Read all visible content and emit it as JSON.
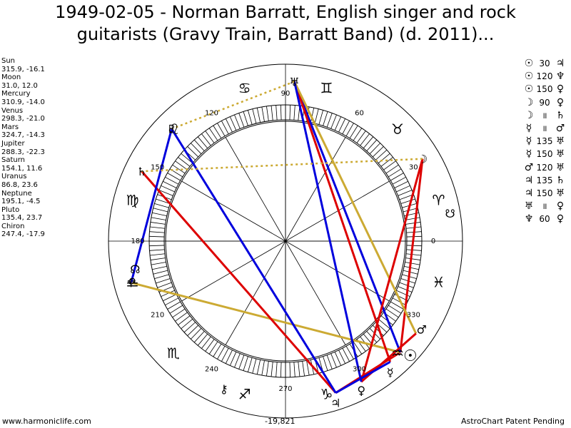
{
  "title": {
    "line1": "1949-02-05 - Norman Barratt, English singer and rock",
    "line2": "guitarists (Gravy Train, Barratt Band) (d. 2011)..."
  },
  "planets": [
    {
      "name": "Sun",
      "coords": "315.9, -16.1",
      "lon": 315.9,
      "symbol": "☉",
      "color": "#000000"
    },
    {
      "name": "Moon",
      "coords": "31.0, 12.0",
      "lon": 31.0,
      "symbol": "☽",
      "color": "#000000"
    },
    {
      "name": "Mercury",
      "coords": "310.9, -14.0",
      "lon": 310.9,
      "symbol": "☿",
      "color": "#000000"
    },
    {
      "name": "Venus",
      "coords": "298.3, -21.0",
      "lon": 298.3,
      "symbol": "♀",
      "color": "#000000"
    },
    {
      "name": "Mars",
      "coords": "324.7, -14.3",
      "lon": 324.7,
      "symbol": "♂",
      "color": "#000000"
    },
    {
      "name": "Jupiter",
      "coords": "288.3, -22.3",
      "lon": 288.3,
      "symbol": "♃",
      "color": "#000000"
    },
    {
      "name": "Saturn",
      "coords": "154.1, 11.6",
      "lon": 154.1,
      "symbol": "♄",
      "color": "#000000"
    },
    {
      "name": "Uranus",
      "coords": "86.8, 23.6",
      "lon": 86.8,
      "symbol": "♅",
      "color": "#000000"
    },
    {
      "name": "Neptune",
      "coords": "195.1, -4.5",
      "lon": 195.1,
      "symbol": "♆",
      "color": "#000000"
    },
    {
      "name": "Pluto",
      "coords": "135.4, 23.7",
      "lon": 135.4,
      "symbol": "♇",
      "color": "#000000"
    },
    {
      "name": "Chiron",
      "coords": "247.4, -17.9",
      "lon": 247.4,
      "symbol": "⚷",
      "color": "#000000"
    }
  ],
  "extra_points": [
    {
      "name": "node-north",
      "symbol": "☊",
      "lon": 190
    },
    {
      "name": "node-south",
      "symbol": "☋",
      "lon": 10
    }
  ],
  "aspect_table": [
    {
      "a": "☉",
      "angle": "30",
      "b": "♃"
    },
    {
      "a": "☉",
      "angle": "120",
      "b": "♆"
    },
    {
      "a": "☉",
      "angle": "150",
      "b": "♀"
    },
    {
      "a": "☽",
      "angle": "90",
      "b": "♀"
    },
    {
      "a": "☽",
      "angle": "॥",
      "b": "♄"
    },
    {
      "a": "☿",
      "angle": "॥",
      "b": "♂"
    },
    {
      "a": "☿",
      "angle": "135",
      "b": "♅"
    },
    {
      "a": "☿",
      "angle": "150",
      "b": "♅"
    },
    {
      "a": "♂",
      "angle": "120",
      "b": "♅"
    },
    {
      "a": "♃",
      "angle": "135",
      "b": "♄"
    },
    {
      "a": "♃",
      "angle": "150",
      "b": "♅"
    },
    {
      "a": "♅",
      "angle": "॥",
      "b": "♀"
    },
    {
      "a": "♆",
      "angle": "60",
      "b": "♀"
    }
  ],
  "zodiac_signs": [
    {
      "name": "aries",
      "symbol": "♈",
      "lon": 15
    },
    {
      "name": "taurus",
      "symbol": "♉",
      "lon": 45
    },
    {
      "name": "gemini",
      "symbol": "♊",
      "lon": 75
    },
    {
      "name": "cancer",
      "symbol": "♋",
      "lon": 105
    },
    {
      "name": "leo",
      "symbol": "♌",
      "lon": 135
    },
    {
      "name": "virgo",
      "symbol": "♍",
      "lon": 165
    },
    {
      "name": "libra",
      "symbol": "♎",
      "lon": 195
    },
    {
      "name": "scorpio",
      "symbol": "♏",
      "lon": 225
    },
    {
      "name": "sagittarius",
      "symbol": "♐",
      "lon": 255
    },
    {
      "name": "capricorn",
      "symbol": "♑",
      "lon": 285
    },
    {
      "name": "aquarius",
      "symbol": "♒",
      "lon": 315
    },
    {
      "name": "pisces",
      "symbol": "♓",
      "lon": 345
    }
  ],
  "degree_labels": [
    "0",
    "30",
    "60",
    "90",
    "120",
    "150",
    "180",
    "210",
    "240",
    "270",
    "300",
    "330"
  ],
  "aspect_lines": [
    {
      "from": 315.9,
      "to": 288.3,
      "color": "#dd0000",
      "dash": false
    },
    {
      "from": 315.9,
      "to": 31.0,
      "color": "#dd0000",
      "dash": false
    },
    {
      "from": 315.9,
      "to": 195.1,
      "color": "#ccaa33",
      "dash": false
    },
    {
      "from": 315.9,
      "to": 86.8,
      "color": "#0000dd",
      "dash": false
    },
    {
      "from": 310.9,
      "to": 86.8,
      "color": "#dd0000",
      "dash": false
    },
    {
      "from": 324.7,
      "to": 86.8,
      "color": "#ccaa33",
      "dash": false
    },
    {
      "from": 324.7,
      "to": 298.3,
      "color": "#dd0000",
      "dash": false
    },
    {
      "from": 298.3,
      "to": 31.0,
      "color": "#dd0000",
      "dash": false
    },
    {
      "from": 288.3,
      "to": 154.1,
      "color": "#dd0000",
      "dash": false
    },
    {
      "from": 288.3,
      "to": 135.4,
      "color": "#0000dd",
      "dash": false
    },
    {
      "from": 288.3,
      "to": 310.9,
      "color": "#0000dd",
      "dash": false
    },
    {
      "from": 298.3,
      "to": 86.8,
      "color": "#0000dd",
      "dash": false
    },
    {
      "from": 195.1,
      "to": 135.4,
      "color": "#0000dd",
      "dash": false
    },
    {
      "from": 31.0,
      "to": 154.1,
      "color": "#ccaa33",
      "dash": true
    },
    {
      "from": 86.8,
      "to": 135.4,
      "color": "#ccaa33",
      "dash": true
    }
  ],
  "footer": {
    "left": "www.harmoniclife.com",
    "center": "-19,821",
    "right": "AstroChart Patent Pending"
  }
}
